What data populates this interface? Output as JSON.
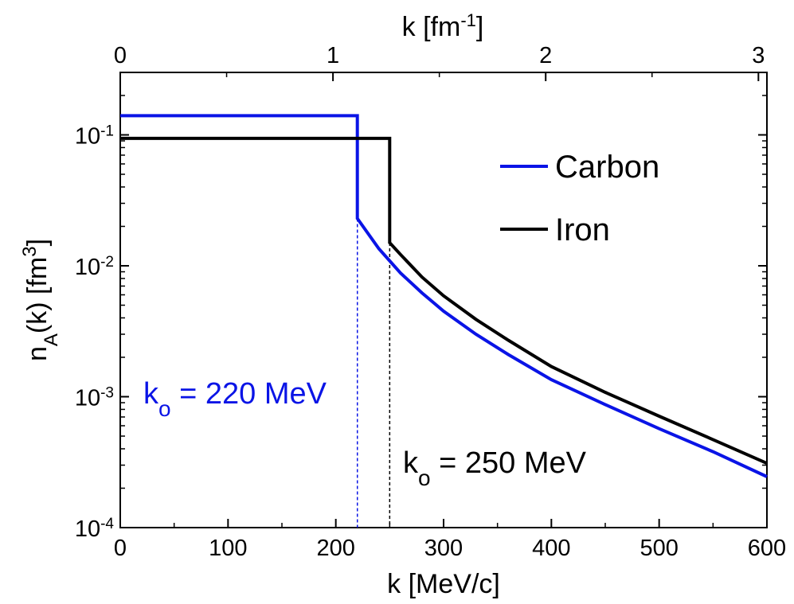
{
  "chart_data": {
    "type": "line",
    "xlabel": {
      "base": "k [MeV/c]"
    },
    "x2label": {
      "base": "k [fm",
      "sup": "-1",
      "end": "]"
    },
    "ylabel": {
      "n": "n",
      "sub": "A",
      "mid": "(k) [fm",
      "sup": "3",
      "end": "]"
    },
    "xlim": [
      0,
      600
    ],
    "x2lim": [
      0,
      3.04
    ],
    "ylim": [
      0.0001,
      0.3
    ],
    "yscale": "log",
    "x_ticks": [
      0,
      100,
      200,
      300,
      400,
      500,
      600
    ],
    "x_tick_labels": [
      "0",
      "100",
      "200",
      "300",
      "400",
      "500",
      "600"
    ],
    "x2_ticks": [
      0,
      1,
      2,
      3
    ],
    "x2_tick_labels": [
      "0",
      "1",
      "2",
      "3"
    ],
    "y_ticks": [
      {
        "value": 0.1,
        "base": "10",
        "exp": "-1"
      },
      {
        "value": 0.01,
        "base": "10",
        "exp": "-2"
      },
      {
        "value": 0.001,
        "base": "10",
        "exp": "-3"
      },
      {
        "value": 0.0001,
        "base": "10",
        "exp": "-4"
      }
    ],
    "series": [
      {
        "name": "Carbon",
        "color": "#0a14e6",
        "points": [
          [
            0,
            0.14
          ],
          [
            220,
            0.14
          ],
          [
            220,
            0.023
          ],
          [
            240,
            0.0135
          ],
          [
            260,
            0.0088
          ],
          [
            280,
            0.0062
          ],
          [
            300,
            0.0045
          ],
          [
            330,
            0.003
          ],
          [
            360,
            0.0021
          ],
          [
            400,
            0.00135
          ],
          [
            450,
            0.00087
          ],
          [
            500,
            0.00057
          ],
          [
            550,
            0.00038
          ],
          [
            600,
            0.000245
          ]
        ]
      },
      {
        "name": "Iron",
        "color": "#000000",
        "points": [
          [
            0,
            0.094
          ],
          [
            250,
            0.094
          ],
          [
            250,
            0.015
          ],
          [
            260,
            0.0122
          ],
          [
            280,
            0.0082
          ],
          [
            300,
            0.0059
          ],
          [
            330,
            0.0039
          ],
          [
            360,
            0.0027
          ],
          [
            400,
            0.0017
          ],
          [
            450,
            0.00108
          ],
          [
            500,
            0.00071
          ],
          [
            550,
            0.00047
          ],
          [
            600,
            0.00031
          ]
        ]
      }
    ],
    "cutoffs": [
      {
        "x": 220,
        "color": "#0a14e6",
        "label_k": "k",
        "label_sub": "o",
        "label_rest": " = 220 MeV"
      },
      {
        "x": 250,
        "color": "#000000",
        "label_k": "k",
        "label_sub": "o",
        "label_rest": " = 250 MeV"
      }
    ],
    "legend": {
      "position": "upper-right",
      "entries": [
        "Carbon",
        "Iron"
      ]
    },
    "grid": false
  }
}
